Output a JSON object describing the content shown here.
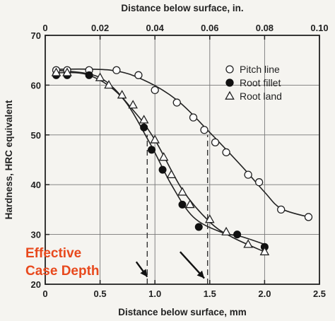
{
  "chart_data": {
    "type": "scatter",
    "xlabel": "Distance below surface, mm",
    "x2label": "Distance below surface, in.",
    "ylabel": "Hardness, HRC equivalent",
    "xlim": [
      0,
      2.5
    ],
    "x2lim": [
      0,
      0.1
    ],
    "ylim": [
      20,
      70
    ],
    "xticks": [
      "0",
      "0.5",
      "1.0",
      "1.5",
      "2.0",
      "2.5"
    ],
    "x2ticks": [
      "0",
      "0.02",
      "0.04",
      "0.06",
      "0.08",
      "0.10"
    ],
    "yticks": [
      "20",
      "30",
      "40",
      "50",
      "60",
      "70"
    ],
    "grid": true,
    "legend_position": "top-right",
    "series": [
      {
        "name": "Pitch line",
        "marker": "open-circle",
        "color": "#ffffff",
        "points": [
          [
            0.1,
            63
          ],
          [
            0.2,
            63
          ],
          [
            0.4,
            63
          ],
          [
            0.65,
            63
          ],
          [
            0.85,
            62
          ],
          [
            1.0,
            59
          ],
          [
            1.2,
            56.5
          ],
          [
            1.35,
            53.5
          ],
          [
            1.45,
            51
          ],
          [
            1.55,
            48.5
          ],
          [
            1.65,
            46.5
          ],
          [
            1.85,
            42
          ],
          [
            1.95,
            40.5
          ],
          [
            2.15,
            35
          ],
          [
            2.4,
            33.5
          ]
        ],
        "curve": [
          [
            0.1,
            63.2
          ],
          [
            0.6,
            63
          ],
          [
            0.9,
            61
          ],
          [
            1.2,
            57
          ],
          [
            1.5,
            50.5
          ],
          [
            1.8,
            43.5
          ],
          [
            2.0,
            38.5
          ],
          [
            2.15,
            35.2
          ],
          [
            2.4,
            33.5
          ]
        ]
      },
      {
        "name": "Root fillet",
        "marker": "filled-circle",
        "color": "#111111",
        "points": [
          [
            0.1,
            62
          ],
          [
            0.2,
            62
          ],
          [
            0.4,
            62
          ],
          [
            0.9,
            51.5
          ],
          [
            0.97,
            47
          ],
          [
            1.07,
            43
          ],
          [
            1.25,
            36
          ],
          [
            1.4,
            31.5
          ],
          [
            1.75,
            30
          ],
          [
            2.0,
            27.5
          ]
        ],
        "curve": [
          [
            0.1,
            62.5
          ],
          [
            0.4,
            62
          ],
          [
            0.7,
            57.5
          ],
          [
            0.95,
            48.5
          ],
          [
            1.15,
            40
          ],
          [
            1.35,
            33.5
          ],
          [
            1.6,
            30.5
          ],
          [
            1.8,
            29.5
          ],
          [
            2.0,
            28
          ]
        ]
      },
      {
        "name": "Root land",
        "marker": "open-triangle",
        "color": "#ffffff",
        "points": [
          [
            0.1,
            62.5
          ],
          [
            0.2,
            62.5
          ],
          [
            0.5,
            61.5
          ],
          [
            0.58,
            60
          ],
          [
            0.7,
            58
          ],
          [
            0.8,
            56
          ],
          [
            0.9,
            53
          ],
          [
            1.0,
            49
          ],
          [
            1.08,
            45.5
          ],
          [
            1.15,
            42
          ],
          [
            1.25,
            38.5
          ],
          [
            1.32,
            36
          ],
          [
            1.5,
            33
          ],
          [
            1.65,
            30.5
          ],
          [
            1.85,
            28
          ],
          [
            2.0,
            26.5
          ]
        ],
        "curve": [
          [
            0.1,
            63
          ],
          [
            0.5,
            61.5
          ],
          [
            0.8,
            55
          ],
          [
            1.0,
            49
          ],
          [
            1.25,
            39
          ],
          [
            1.5,
            32.5
          ],
          [
            1.7,
            29.5
          ],
          [
            2.0,
            26.5
          ]
        ]
      }
    ],
    "reference_lines": [
      {
        "x": 0.93,
        "y_from": 20,
        "y_to": 50,
        "style": "dashed"
      },
      {
        "x": 1.48,
        "y_from": 20,
        "y_to": 50,
        "style": "dashed"
      }
    ],
    "annotations": {
      "line1": "Effective",
      "line2": "Case Depth",
      "arrows": [
        {
          "from": [
            0.83,
            24.5
          ],
          "to": [
            0.93,
            21.5
          ]
        },
        {
          "from": [
            1.23,
            26.5
          ],
          "to": [
            1.45,
            21.2
          ]
        }
      ]
    }
  }
}
